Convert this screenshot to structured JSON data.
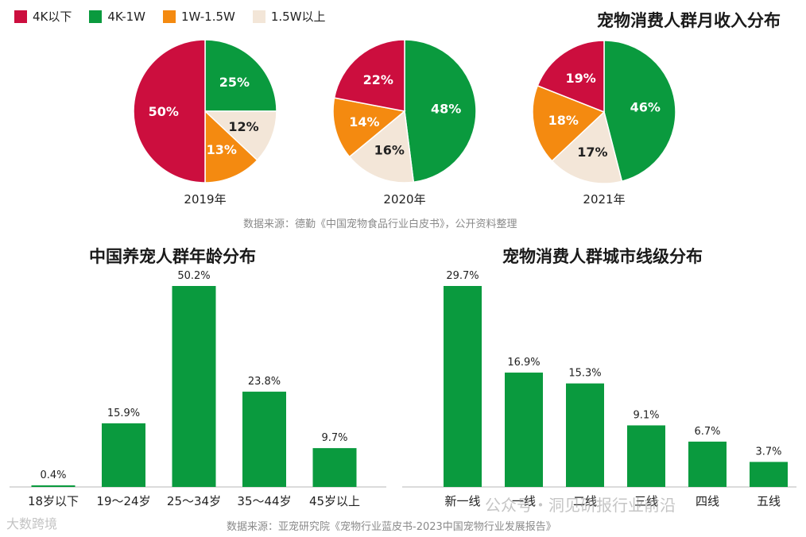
{
  "legend": {
    "items": [
      {
        "label": "4K以下",
        "color": "#cc0e3e"
      },
      {
        "label": "4K-1W",
        "color": "#0a9a3e"
      },
      {
        "label": "1W-1.5W",
        "color": "#f48a10"
      },
      {
        "label": "1.5W以上",
        "color": "#f3e6d8"
      }
    ]
  },
  "income": {
    "title": "宠物消费人群月收入分布",
    "source": "数据来源：德勤《中国宠物食品行业白皮书》，公开资料整理"
  },
  "age": {
    "title": "中国养宠人群年龄分布"
  },
  "city": {
    "title": "宠物消费人群城市线级分布"
  },
  "footer": {
    "source": "数据来源：亚宠研究院《宠物行业蓝皮书-2023中国宠物行业发展报告》",
    "watermark": "公众号・洞见研报行业前沿",
    "logo": "大数跨境"
  },
  "chart_data": [
    {
      "type": "pie",
      "year": "2019年",
      "categories": [
        "4K以下",
        "4K-1W",
        "1W-1.5W",
        "1.5W以上"
      ],
      "values": [
        50,
        25,
        13,
        12
      ],
      "labels": [
        "50%",
        "25%",
        "13%",
        "12%"
      ]
    },
    {
      "type": "pie",
      "year": "2020年",
      "categories": [
        "4K以下",
        "4K-1W",
        "1W-1.5W",
        "1.5W以上"
      ],
      "values": [
        22,
        48,
        14,
        16
      ],
      "labels": [
        "22%",
        "48%",
        "14%",
        "16%"
      ]
    },
    {
      "type": "pie",
      "year": "2021年",
      "categories": [
        "4K以下",
        "4K-1W",
        "1W-1.5W",
        "1.5W以上"
      ],
      "values": [
        19,
        46,
        18,
        17
      ],
      "labels": [
        "19%",
        "46%",
        "18%",
        "17%"
      ]
    },
    {
      "type": "bar",
      "title": "中国养宠人群年龄分布",
      "categories": [
        "18岁以下",
        "19～24岁",
        "25～34岁",
        "35～44岁",
        "45岁以上"
      ],
      "values": [
        0.4,
        15.9,
        50.2,
        23.8,
        9.7
      ],
      "labels": [
        "0.4%",
        "15.9%",
        "50.2%",
        "23.8%",
        "9.7%"
      ],
      "color": "#0a9a3e"
    },
    {
      "type": "bar",
      "title": "宠物消费人群城市线级分布",
      "categories": [
        "新一线",
        "一线",
        "二线",
        "三线",
        "四线",
        "五线"
      ],
      "values": [
        29.7,
        16.9,
        15.3,
        9.1,
        6.7,
        3.7
      ],
      "labels": [
        "29.7%",
        "16.9%",
        "15.3%",
        "9.1%",
        "6.7%",
        "3.7%"
      ],
      "color": "#0a9a3e"
    }
  ]
}
